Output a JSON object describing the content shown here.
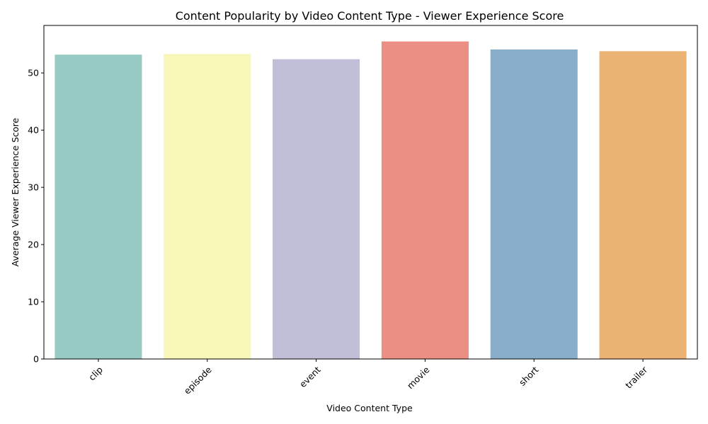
{
  "chart_data": {
    "type": "bar",
    "title": "Content Popularity by Video Content Type - Viewer Experience Score",
    "xlabel": "Video Content Type",
    "ylabel": "Average Viewer Experience Score",
    "categories": [
      "clip",
      "episode",
      "event",
      "movie",
      "short",
      "trailer"
    ],
    "values": [
      53.2,
      53.3,
      52.4,
      55.5,
      54.1,
      53.8
    ],
    "colors": [
      "#96cac2",
      "#f7f7ba",
      "#c1bfd8",
      "#eb8e83",
      "#88aec9",
      "#ebb373"
    ],
    "ylim": [
      0,
      58.3
    ],
    "yticks": [
      0,
      10,
      20,
      30,
      40,
      50
    ],
    "x_tick_rotation_deg": 45,
    "grid": false,
    "legend": "none"
  }
}
